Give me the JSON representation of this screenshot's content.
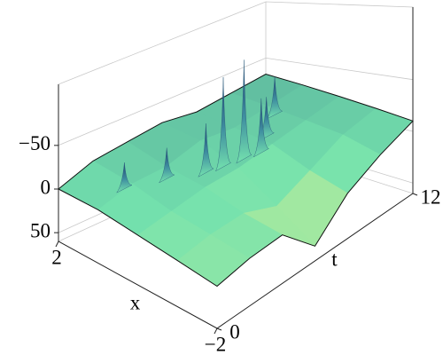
{
  "chart_data": {
    "type": "surface3d",
    "xlabel": "x",
    "tlabel": "t",
    "xlim": [
      2,
      -2
    ],
    "xticks": [
      2,
      {
        "value": -2,
        "label": "−2"
      }
    ],
    "tlim": [
      0,
      12
    ],
    "tticks": [
      0,
      12
    ],
    "zlim": [
      60,
      -120
    ],
    "zticks": [
      {
        "value": -50,
        "label": "−50"
      },
      0,
      50
    ],
    "grid_x": [
      2,
      1,
      0,
      -1,
      -2
    ],
    "grid_t": [
      0,
      2,
      4,
      6,
      8,
      10,
      12
    ],
    "z": [
      [
        0,
        -15,
        -20,
        -25,
        -20,
        -25,
        -30
      ],
      [
        0,
        -10,
        -10,
        -20,
        -15,
        -20,
        -25
      ],
      [
        5,
        0,
        -5,
        -5,
        -10,
        -15,
        -20
      ],
      [
        10,
        5,
        5,
        20,
        5,
        -10,
        -15
      ],
      [
        15,
        10,
        10,
        45,
        15,
        0,
        -10
      ]
    ],
    "peaks": {
      "x": [
        1.2,
        0.9,
        0.5,
        0.4,
        0.3,
        0.2,
        0.6,
        1.2
      ],
      "t": [
        2.0,
        3.8,
        5.2,
        6.0,
        7.0,
        7.8,
        9.0,
        10.8
      ],
      "z": [
        -30,
        -35,
        -55,
        -100,
        -110,
        -60,
        -45,
        -45
      ]
    },
    "colormap": [
      "#1c3c70",
      "#74e2ae",
      "#f4f488"
    ]
  }
}
